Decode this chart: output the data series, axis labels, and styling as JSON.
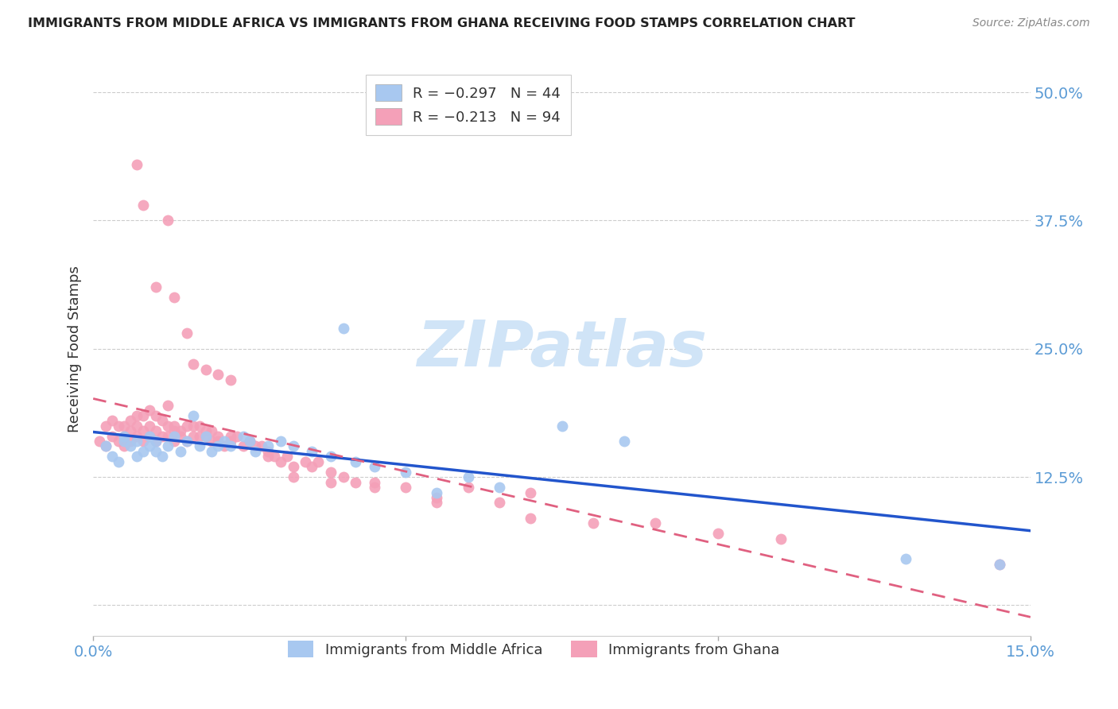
{
  "title": "IMMIGRANTS FROM MIDDLE AFRICA VS IMMIGRANTS FROM GHANA RECEIVING FOOD STAMPS CORRELATION CHART",
  "source": "Source: ZipAtlas.com",
  "ylabel": "Receiving Food Stamps",
  "ytick_labels": [
    "",
    "12.5%",
    "25.0%",
    "37.5%",
    "50.0%"
  ],
  "yticks": [
    0.0,
    0.125,
    0.25,
    0.375,
    0.5
  ],
  "xmin": 0.0,
  "xmax": 0.15,
  "ymin": -0.03,
  "ymax": 0.53,
  "legend_title_blue": "Immigrants from Middle Africa",
  "legend_title_pink": "Immigrants from Ghana",
  "watermark": "ZIPatlas",
  "blue_scatter_color": "#A8C8F0",
  "pink_scatter_color": "#F4A0B8",
  "blue_line_color": "#2255CC",
  "pink_line_color": "#E06080",
  "title_color": "#222222",
  "axis_label_color": "#5B9BD5",
  "grid_color": "#CCCCCC",
  "watermark_color": "#D0E4F7",
  "blue_scatter": {
    "x": [
      0.002,
      0.003,
      0.004,
      0.005,
      0.005,
      0.006,
      0.007,
      0.007,
      0.008,
      0.009,
      0.009,
      0.01,
      0.01,
      0.011,
      0.012,
      0.013,
      0.014,
      0.015,
      0.016,
      0.017,
      0.018,
      0.019,
      0.02,
      0.021,
      0.022,
      0.024,
      0.025,
      0.026,
      0.028,
      0.03,
      0.032,
      0.035,
      0.038,
      0.04,
      0.042,
      0.045,
      0.05,
      0.055,
      0.06,
      0.065,
      0.075,
      0.085,
      0.13,
      0.145
    ],
    "y": [
      0.155,
      0.145,
      0.14,
      0.16,
      0.165,
      0.155,
      0.145,
      0.16,
      0.15,
      0.155,
      0.165,
      0.15,
      0.16,
      0.145,
      0.155,
      0.165,
      0.15,
      0.16,
      0.185,
      0.155,
      0.165,
      0.15,
      0.155,
      0.16,
      0.155,
      0.165,
      0.16,
      0.15,
      0.155,
      0.16,
      0.155,
      0.15,
      0.145,
      0.27,
      0.14,
      0.135,
      0.13,
      0.11,
      0.125,
      0.115,
      0.175,
      0.16,
      0.045,
      0.04
    ]
  },
  "pink_scatter": {
    "x": [
      0.001,
      0.002,
      0.002,
      0.003,
      0.003,
      0.004,
      0.004,
      0.005,
      0.005,
      0.005,
      0.006,
      0.006,
      0.006,
      0.007,
      0.007,
      0.007,
      0.008,
      0.008,
      0.008,
      0.009,
      0.009,
      0.009,
      0.01,
      0.01,
      0.01,
      0.011,
      0.011,
      0.012,
      0.012,
      0.012,
      0.013,
      0.013,
      0.013,
      0.014,
      0.014,
      0.015,
      0.015,
      0.016,
      0.016,
      0.017,
      0.017,
      0.018,
      0.018,
      0.019,
      0.019,
      0.02,
      0.02,
      0.021,
      0.022,
      0.022,
      0.023,
      0.024,
      0.025,
      0.026,
      0.027,
      0.028,
      0.029,
      0.03,
      0.031,
      0.032,
      0.034,
      0.035,
      0.036,
      0.038,
      0.04,
      0.042,
      0.045,
      0.05,
      0.055,
      0.06,
      0.065,
      0.07,
      0.08,
      0.09,
      0.1,
      0.11,
      0.007,
      0.008,
      0.01,
      0.012,
      0.013,
      0.015,
      0.016,
      0.018,
      0.02,
      0.022,
      0.025,
      0.028,
      0.032,
      0.038,
      0.045,
      0.055,
      0.07,
      0.145
    ],
    "y": [
      0.16,
      0.155,
      0.175,
      0.165,
      0.18,
      0.16,
      0.175,
      0.165,
      0.155,
      0.175,
      0.16,
      0.17,
      0.18,
      0.165,
      0.175,
      0.185,
      0.16,
      0.17,
      0.185,
      0.165,
      0.175,
      0.19,
      0.16,
      0.17,
      0.185,
      0.165,
      0.18,
      0.165,
      0.175,
      0.195,
      0.16,
      0.17,
      0.175,
      0.165,
      0.17,
      0.16,
      0.175,
      0.165,
      0.175,
      0.165,
      0.175,
      0.165,
      0.17,
      0.16,
      0.17,
      0.16,
      0.165,
      0.155,
      0.165,
      0.16,
      0.165,
      0.155,
      0.16,
      0.155,
      0.155,
      0.15,
      0.145,
      0.14,
      0.145,
      0.135,
      0.14,
      0.135,
      0.14,
      0.13,
      0.125,
      0.12,
      0.12,
      0.115,
      0.105,
      0.115,
      0.1,
      0.11,
      0.08,
      0.08,
      0.07,
      0.065,
      0.43,
      0.39,
      0.31,
      0.375,
      0.3,
      0.265,
      0.235,
      0.23,
      0.225,
      0.22,
      0.16,
      0.145,
      0.125,
      0.12,
      0.115,
      0.1,
      0.085,
      0.04
    ]
  }
}
